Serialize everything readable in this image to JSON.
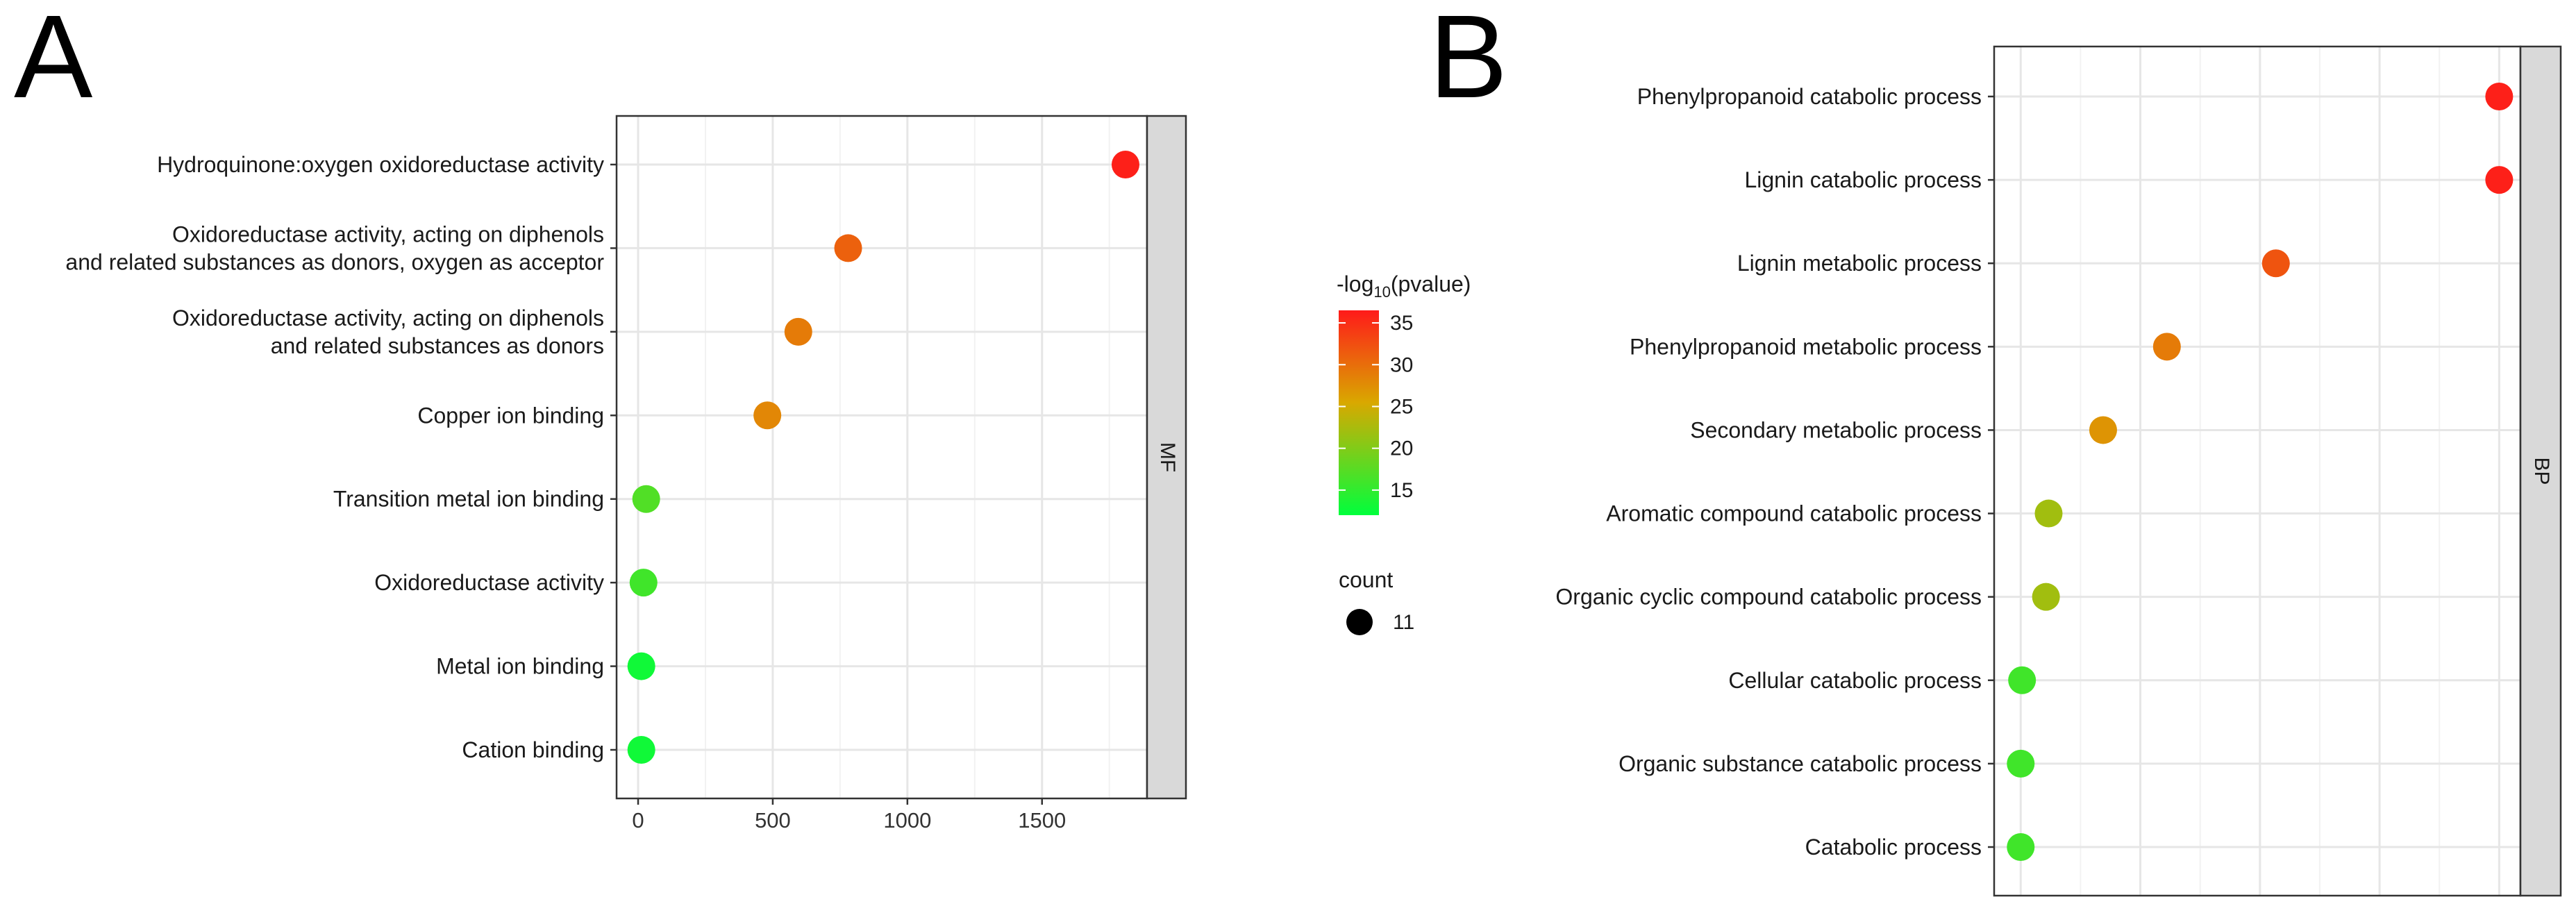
{
  "panels": {
    "a": {
      "letter": "A"
    },
    "b": {
      "letter": "B"
    }
  },
  "legend": {
    "color_title_prefix": "-log",
    "color_title_sub": "10",
    "color_title_suffix": "(pvalue)",
    "color_ticks": [
      15,
      20,
      25,
      30,
      35
    ],
    "color_range": [
      12,
      36.5
    ],
    "color_low": "#00ff3c",
    "color_mid": "#d9a800",
    "color_high": "#ff1a1a",
    "size_title": "count",
    "size_value": "11",
    "size_color": "#000000"
  },
  "chart_data": [
    {
      "type": "scatter",
      "panel": "A",
      "facet": "MF",
      "x": [
        1810,
        780,
        595,
        480,
        30,
        20,
        12,
        12
      ],
      "categories": [
        "Hydroquinone:oxygen oxidoreductase activity",
        "Oxidoreductase activity, acting on diphenols\nand related substances as donors, oxygen as acceptor",
        "Oxidoreductase activity, acting on diphenols\nand related substances as donors",
        "Copper ion binding",
        "Transition metal ion binding",
        "Oxidoreductase activity",
        "Metal ion binding",
        "Cation binding"
      ],
      "color_values": [
        36,
        31,
        29,
        28,
        17,
        16,
        13,
        13
      ],
      "xticks": [
        "0",
        "500",
        "1000",
        "1500"
      ],
      "xtick_values": [
        0,
        500,
        1000,
        1500
      ],
      "xlim": [
        -80,
        1890
      ],
      "xlabel": "",
      "ylabel": ""
    },
    {
      "type": "scatter",
      "panel": "B",
      "facet": "BP",
      "x": [
        1900,
        1900,
        1060,
        650,
        410,
        205,
        195,
        105,
        100,
        100
      ],
      "categories": [
        "Phenylpropanoid catabolic process",
        "Lignin catabolic process",
        "Lignin metabolic process",
        "Phenylpropanoid metabolic process",
        "Secondary metabolic process",
        "Aromatic compound catabolic process",
        "Organic cyclic compound catabolic process",
        "Cellular catabolic process",
        "Organic substance catabolic process",
        "Catabolic process"
      ],
      "color_values": [
        36,
        36,
        32,
        29,
        27,
        22,
        22,
        16,
        16,
        16
      ],
      "xticks": [],
      "xtick_values": [],
      "xlim": [
        0,
        1980
      ],
      "xlabel": "",
      "ylabel": ""
    }
  ]
}
